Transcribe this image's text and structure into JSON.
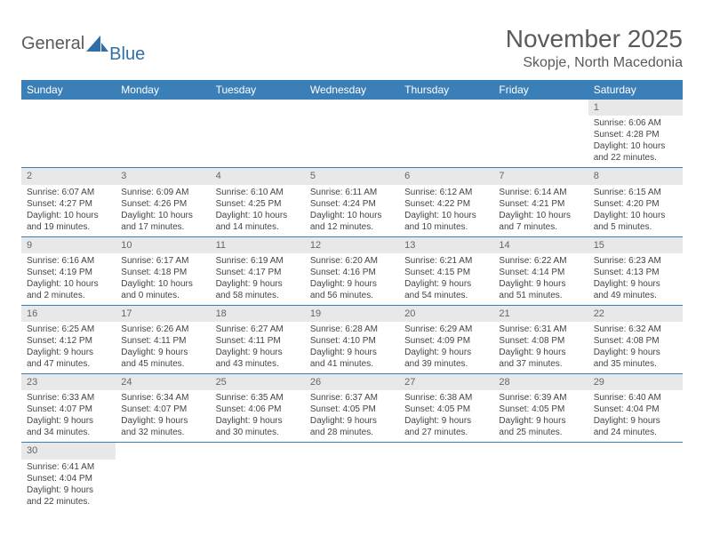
{
  "logo": {
    "general": "General",
    "blue": "Blue"
  },
  "header": {
    "title": "November 2025",
    "location": "Skopje, North Macedonia"
  },
  "colors": {
    "header_bg": "#3b7fb8",
    "header_text": "#ffffff",
    "daynum_bg": "#e8e8e8",
    "border": "#3b7fb8"
  },
  "day_names": [
    "Sunday",
    "Monday",
    "Tuesday",
    "Wednesday",
    "Thursday",
    "Friday",
    "Saturday"
  ],
  "weeks": [
    [
      null,
      null,
      null,
      null,
      null,
      null,
      {
        "n": "1",
        "sr": "Sunrise: 6:06 AM",
        "ss": "Sunset: 4:28 PM",
        "d1": "Daylight: 10 hours",
        "d2": "and 22 minutes."
      }
    ],
    [
      {
        "n": "2",
        "sr": "Sunrise: 6:07 AM",
        "ss": "Sunset: 4:27 PM",
        "d1": "Daylight: 10 hours",
        "d2": "and 19 minutes."
      },
      {
        "n": "3",
        "sr": "Sunrise: 6:09 AM",
        "ss": "Sunset: 4:26 PM",
        "d1": "Daylight: 10 hours",
        "d2": "and 17 minutes."
      },
      {
        "n": "4",
        "sr": "Sunrise: 6:10 AM",
        "ss": "Sunset: 4:25 PM",
        "d1": "Daylight: 10 hours",
        "d2": "and 14 minutes."
      },
      {
        "n": "5",
        "sr": "Sunrise: 6:11 AM",
        "ss": "Sunset: 4:24 PM",
        "d1": "Daylight: 10 hours",
        "d2": "and 12 minutes."
      },
      {
        "n": "6",
        "sr": "Sunrise: 6:12 AM",
        "ss": "Sunset: 4:22 PM",
        "d1": "Daylight: 10 hours",
        "d2": "and 10 minutes."
      },
      {
        "n": "7",
        "sr": "Sunrise: 6:14 AM",
        "ss": "Sunset: 4:21 PM",
        "d1": "Daylight: 10 hours",
        "d2": "and 7 minutes."
      },
      {
        "n": "8",
        "sr": "Sunrise: 6:15 AM",
        "ss": "Sunset: 4:20 PM",
        "d1": "Daylight: 10 hours",
        "d2": "and 5 minutes."
      }
    ],
    [
      {
        "n": "9",
        "sr": "Sunrise: 6:16 AM",
        "ss": "Sunset: 4:19 PM",
        "d1": "Daylight: 10 hours",
        "d2": "and 2 minutes."
      },
      {
        "n": "10",
        "sr": "Sunrise: 6:17 AM",
        "ss": "Sunset: 4:18 PM",
        "d1": "Daylight: 10 hours",
        "d2": "and 0 minutes."
      },
      {
        "n": "11",
        "sr": "Sunrise: 6:19 AM",
        "ss": "Sunset: 4:17 PM",
        "d1": "Daylight: 9 hours",
        "d2": "and 58 minutes."
      },
      {
        "n": "12",
        "sr": "Sunrise: 6:20 AM",
        "ss": "Sunset: 4:16 PM",
        "d1": "Daylight: 9 hours",
        "d2": "and 56 minutes."
      },
      {
        "n": "13",
        "sr": "Sunrise: 6:21 AM",
        "ss": "Sunset: 4:15 PM",
        "d1": "Daylight: 9 hours",
        "d2": "and 54 minutes."
      },
      {
        "n": "14",
        "sr": "Sunrise: 6:22 AM",
        "ss": "Sunset: 4:14 PM",
        "d1": "Daylight: 9 hours",
        "d2": "and 51 minutes."
      },
      {
        "n": "15",
        "sr": "Sunrise: 6:23 AM",
        "ss": "Sunset: 4:13 PM",
        "d1": "Daylight: 9 hours",
        "d2": "and 49 minutes."
      }
    ],
    [
      {
        "n": "16",
        "sr": "Sunrise: 6:25 AM",
        "ss": "Sunset: 4:12 PM",
        "d1": "Daylight: 9 hours",
        "d2": "and 47 minutes."
      },
      {
        "n": "17",
        "sr": "Sunrise: 6:26 AM",
        "ss": "Sunset: 4:11 PM",
        "d1": "Daylight: 9 hours",
        "d2": "and 45 minutes."
      },
      {
        "n": "18",
        "sr": "Sunrise: 6:27 AM",
        "ss": "Sunset: 4:11 PM",
        "d1": "Daylight: 9 hours",
        "d2": "and 43 minutes."
      },
      {
        "n": "19",
        "sr": "Sunrise: 6:28 AM",
        "ss": "Sunset: 4:10 PM",
        "d1": "Daylight: 9 hours",
        "d2": "and 41 minutes."
      },
      {
        "n": "20",
        "sr": "Sunrise: 6:29 AM",
        "ss": "Sunset: 4:09 PM",
        "d1": "Daylight: 9 hours",
        "d2": "and 39 minutes."
      },
      {
        "n": "21",
        "sr": "Sunrise: 6:31 AM",
        "ss": "Sunset: 4:08 PM",
        "d1": "Daylight: 9 hours",
        "d2": "and 37 minutes."
      },
      {
        "n": "22",
        "sr": "Sunrise: 6:32 AM",
        "ss": "Sunset: 4:08 PM",
        "d1": "Daylight: 9 hours",
        "d2": "and 35 minutes."
      }
    ],
    [
      {
        "n": "23",
        "sr": "Sunrise: 6:33 AM",
        "ss": "Sunset: 4:07 PM",
        "d1": "Daylight: 9 hours",
        "d2": "and 34 minutes."
      },
      {
        "n": "24",
        "sr": "Sunrise: 6:34 AM",
        "ss": "Sunset: 4:07 PM",
        "d1": "Daylight: 9 hours",
        "d2": "and 32 minutes."
      },
      {
        "n": "25",
        "sr": "Sunrise: 6:35 AM",
        "ss": "Sunset: 4:06 PM",
        "d1": "Daylight: 9 hours",
        "d2": "and 30 minutes."
      },
      {
        "n": "26",
        "sr": "Sunrise: 6:37 AM",
        "ss": "Sunset: 4:05 PM",
        "d1": "Daylight: 9 hours",
        "d2": "and 28 minutes."
      },
      {
        "n": "27",
        "sr": "Sunrise: 6:38 AM",
        "ss": "Sunset: 4:05 PM",
        "d1": "Daylight: 9 hours",
        "d2": "and 27 minutes."
      },
      {
        "n": "28",
        "sr": "Sunrise: 6:39 AM",
        "ss": "Sunset: 4:05 PM",
        "d1": "Daylight: 9 hours",
        "d2": "and 25 minutes."
      },
      {
        "n": "29",
        "sr": "Sunrise: 6:40 AM",
        "ss": "Sunset: 4:04 PM",
        "d1": "Daylight: 9 hours",
        "d2": "and 24 minutes."
      }
    ],
    [
      {
        "n": "30",
        "sr": "Sunrise: 6:41 AM",
        "ss": "Sunset: 4:04 PM",
        "d1": "Daylight: 9 hours",
        "d2": "and 22 minutes."
      },
      null,
      null,
      null,
      null,
      null,
      null
    ]
  ]
}
